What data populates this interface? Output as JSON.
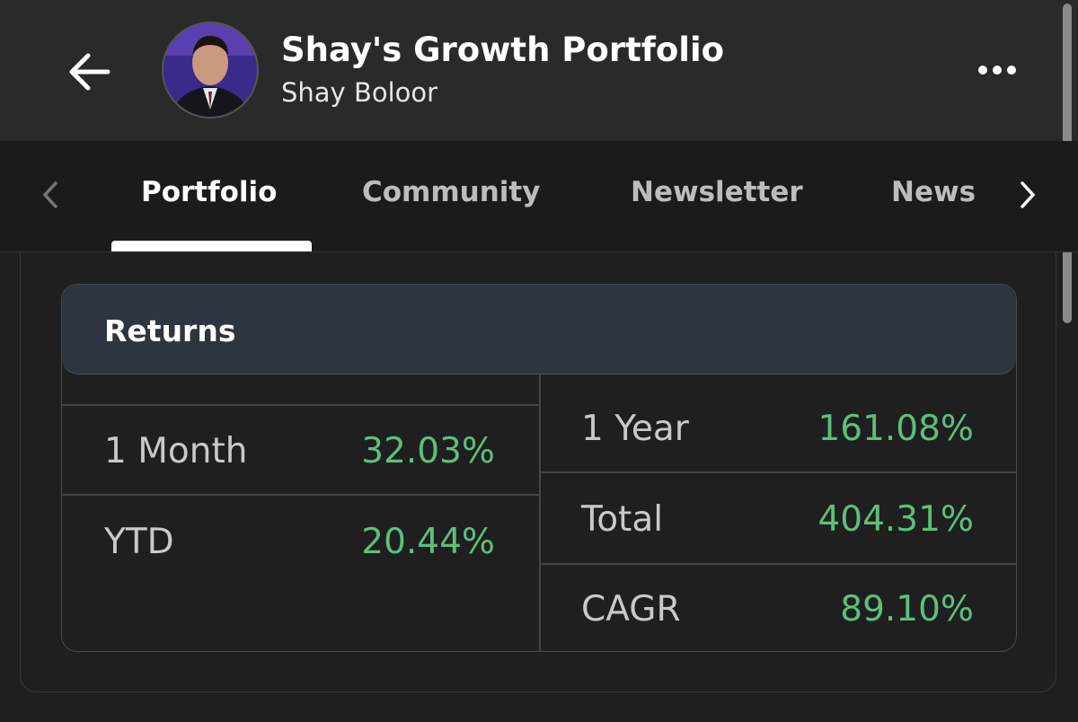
{
  "header": {
    "title": "Shay's Growth Portfolio",
    "subtitle": "Shay Boloor"
  },
  "tabs": [
    "Portfolio",
    "Community",
    "Newsletter",
    "News"
  ],
  "returns": {
    "title": "Returns",
    "left": [
      {
        "label": "1 Month",
        "value": "32.03%"
      },
      {
        "label": "YTD",
        "value": "20.44%"
      }
    ],
    "right": [
      {
        "label": "1 Year",
        "value": "161.08%"
      },
      {
        "label": "Total",
        "value": "404.31%"
      },
      {
        "label": "CAGR",
        "value": "89.10%"
      }
    ]
  }
}
